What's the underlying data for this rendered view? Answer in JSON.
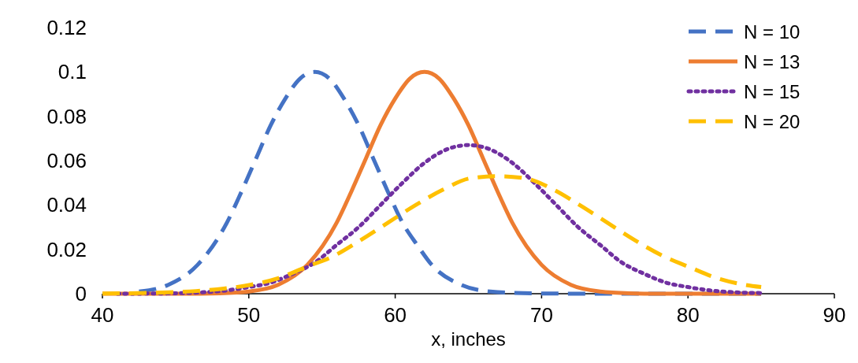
{
  "chart_data": {
    "type": "line",
    "xlabel": "x, inches",
    "xlim": [
      40,
      90
    ],
    "xticks": [
      40,
      50,
      60,
      70,
      80,
      90
    ],
    "ylim": [
      0,
      0.12
    ],
    "yticks": [
      0,
      0.02,
      0.04,
      0.06,
      0.08,
      0.1,
      0.12
    ],
    "grid": false,
    "legend": "top right",
    "marker": "none",
    "series": [
      {
        "name": "N = 10",
        "color": "#4472c4",
        "line_style": "dashed",
        "x": [
          42.5,
          44.5,
          46.5,
          48.5,
          49.5,
          50.5,
          51.5,
          52.5,
          53.5,
          54.5,
          55.5,
          56.5,
          57.5,
          58.5,
          59.5,
          60.5,
          61.5,
          62.5,
          64.5,
          66.5,
          70,
          75,
          85
        ],
        "values": [
          0.001,
          0.004,
          0.013,
          0.032,
          0.046,
          0.061,
          0.076,
          0.088,
          0.097,
          0.1,
          0.097,
          0.088,
          0.076,
          0.061,
          0.046,
          0.032,
          0.022,
          0.013,
          0.004,
          0.001,
          0.0001,
          0,
          0
        ]
      },
      {
        "name": "N = 13",
        "color": "#ed7d31",
        "line_style": "solid",
        "x": [
          40,
          46,
          48,
          50,
          52,
          54,
          56,
          57,
          58,
          59,
          60,
          61,
          62,
          63,
          64,
          65,
          66,
          67,
          68,
          70,
          72,
          74,
          76,
          78,
          85
        ],
        "values": [
          0,
          0,
          0.0002,
          0.001,
          0.004,
          0.013,
          0.032,
          0.046,
          0.061,
          0.076,
          0.088,
          0.097,
          0.1,
          0.097,
          0.088,
          0.076,
          0.061,
          0.046,
          0.032,
          0.013,
          0.004,
          0.001,
          0.0002,
          0,
          0
        ]
      },
      {
        "name": "N = 15",
        "color": "#7030a0",
        "line_style": "dotted",
        "x": [
          41,
          44,
          47,
          48.5,
          50,
          51.5,
          53,
          54.5,
          56,
          57.5,
          59,
          60.5,
          62,
          63.5,
          65,
          66.5,
          68,
          69.5,
          71,
          72.5,
          74,
          75.5,
          77,
          78.5,
          80,
          81.5,
          83,
          85
        ],
        "values": [
          0,
          0.0001,
          0.0007,
          0.0015,
          0.003,
          0.005,
          0.009,
          0.014,
          0.022,
          0.03,
          0.04,
          0.05,
          0.059,
          0.065,
          0.067,
          0.065,
          0.059,
          0.05,
          0.04,
          0.03,
          0.022,
          0.014,
          0.009,
          0.005,
          0.003,
          0.0015,
          0.0007,
          0.0003
        ]
      },
      {
        "name": "N = 20",
        "color": "#ffc000",
        "line_style": "dashed",
        "x": [
          40,
          44.5,
          46.4,
          48.3,
          50.1,
          52,
          53.9,
          55.8,
          57.6,
          59.5,
          61.4,
          63.3,
          65.1,
          67,
          68.9,
          70.8,
          72.6,
          74.5,
          76.4,
          78.3,
          80.1,
          82,
          83.9,
          85
        ],
        "values": [
          0.0001,
          0.0006,
          0.0012,
          0.0023,
          0.004,
          0.007,
          0.012,
          0.017,
          0.024,
          0.032,
          0.04,
          0.047,
          0.052,
          0.053,
          0.052,
          0.047,
          0.04,
          0.032,
          0.024,
          0.017,
          0.012,
          0.007,
          0.004,
          0.003
        ]
      }
    ]
  }
}
